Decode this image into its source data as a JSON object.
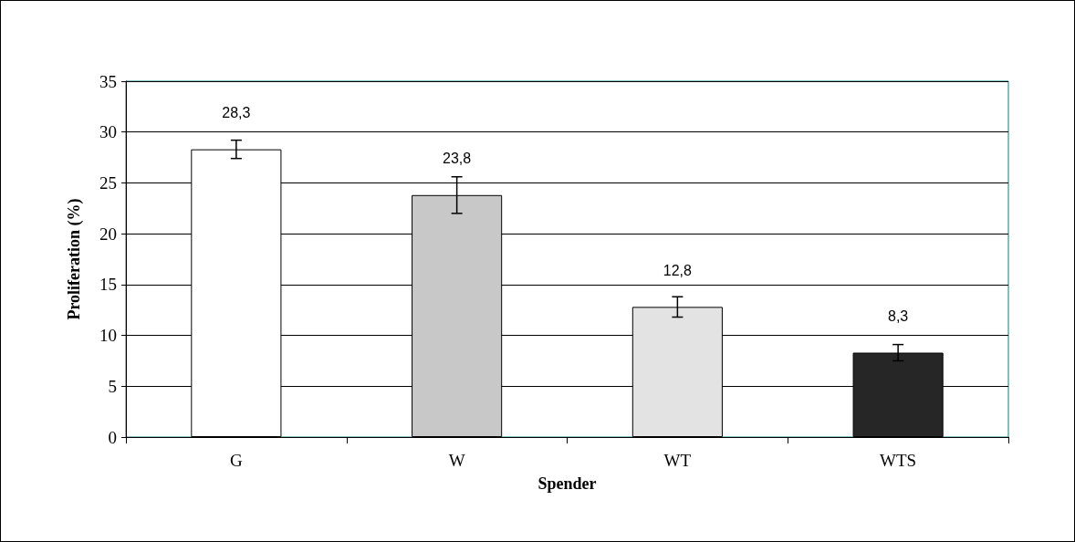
{
  "chart_data": {
    "type": "bar",
    "xlabel": "Spender",
    "ylabel": "Proliferation (%)",
    "categories": [
      "G",
      "W",
      "WT",
      "WTS"
    ],
    "values": [
      28.3,
      23.8,
      12.8,
      8.3
    ],
    "colors": [
      "#ffffff",
      "#c8c8c8",
      "#e3e3e3",
      "#262626"
    ],
    "errors": [
      0.9,
      1.8,
      1.0,
      0.8
    ],
    "value_labels": [
      "28,3",
      "23,8",
      "12,8",
      "8,3"
    ],
    "ylim": [
      0,
      35
    ],
    "yticks": [
      0,
      5,
      10,
      15,
      20,
      25,
      30,
      35
    ],
    "grid": "y"
  }
}
